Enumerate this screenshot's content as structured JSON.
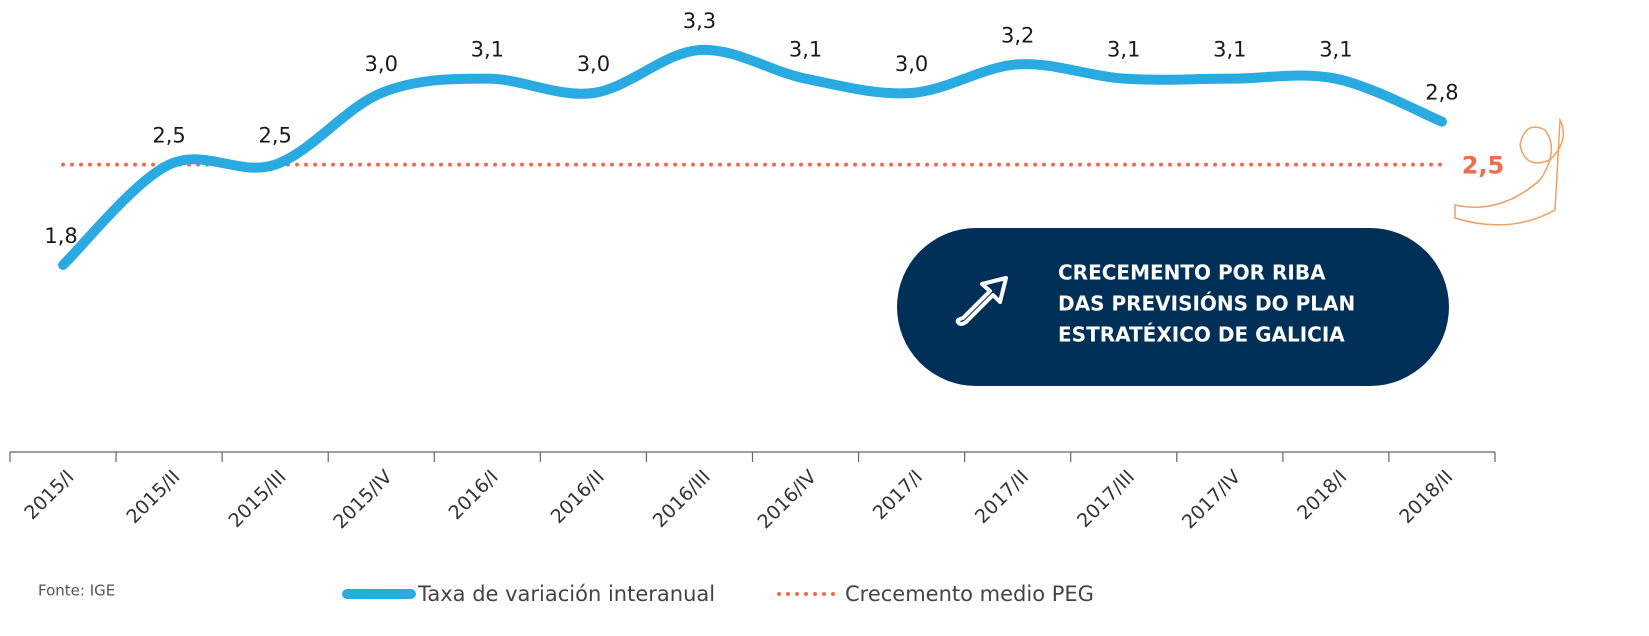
{
  "chart_data": {
    "type": "line",
    "categories": [
      "2015/I",
      "2015/II",
      "2015/III",
      "2015/IV",
      "2016/I",
      "2016/II",
      "2016/III",
      "2016/IV",
      "2017/I",
      "2017/II",
      "2017/III",
      "2017/IV",
      "2018/I",
      "2018/II"
    ],
    "series": [
      {
        "name": "Taxa de variación interanual",
        "color": "#29abe2",
        "values": [
          1.8,
          2.5,
          2.5,
          3.0,
          3.1,
          3.0,
          3.3,
          3.1,
          3.0,
          3.2,
          3.1,
          3.1,
          3.1,
          2.8
        ],
        "value_labels": [
          "1,8",
          "2,5",
          "2,5",
          "3,0",
          "3,1",
          "3,0",
          "3,3",
          "3,1",
          "3,0",
          "3,2",
          "3,1",
          "3,1",
          "3,1",
          "2,8"
        ]
      }
    ],
    "reference_line": {
      "name": "Crecemento medio PEG",
      "value": 2.5,
      "label": "2,5",
      "color": "#f26b4f"
    },
    "callout": [
      "CRECEMENTO POR RIBA",
      "DAS PREVISIÓNS DO PLAN",
      "ESTRATÉXICO DE GALICIA"
    ],
    "source": "Fonte: IGE"
  }
}
